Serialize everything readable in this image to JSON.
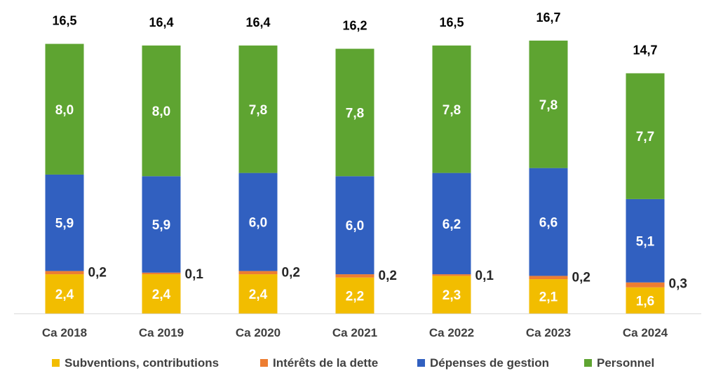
{
  "chart_data": {
    "type": "bar",
    "stacked": true,
    "categories": [
      "Ca 2018",
      "Ca 2019",
      "Ca 2020",
      "Ca 2021",
      "Ca 2022",
      "Ca 2023",
      "Ca 2024"
    ],
    "series": [
      {
        "name": "Subventions, contributions",
        "values": [
          "2,4",
          "2,4",
          "2,4",
          "2,2",
          "2,3",
          "2,1",
          "1,6"
        ],
        "color": "#f2bd00"
      },
      {
        "name": "Intérêts de la dette",
        "values": [
          "0,2",
          "0,1",
          "0,2",
          "0,2",
          "0,1",
          "0,2",
          "0,3"
        ],
        "color": "#ed7d31"
      },
      {
        "name": "Dépenses de gestion",
        "values": [
          "5,9",
          "5,9",
          "6,0",
          "6,0",
          "6,2",
          "6,6",
          "5,1"
        ],
        "color": "#3160c0"
      },
      {
        "name": "Personnel",
        "values": [
          "8,0",
          "8,0",
          "7,8",
          "7,8",
          "7,8",
          "7,8",
          "7,7"
        ],
        "color": "#5ea431"
      }
    ],
    "totals": [
      "16,5",
      "16,4",
      "16,4",
      "16,2",
      "16,5",
      "16,7",
      "14,7"
    ],
    "legend_position": "bottom",
    "grid": false
  }
}
